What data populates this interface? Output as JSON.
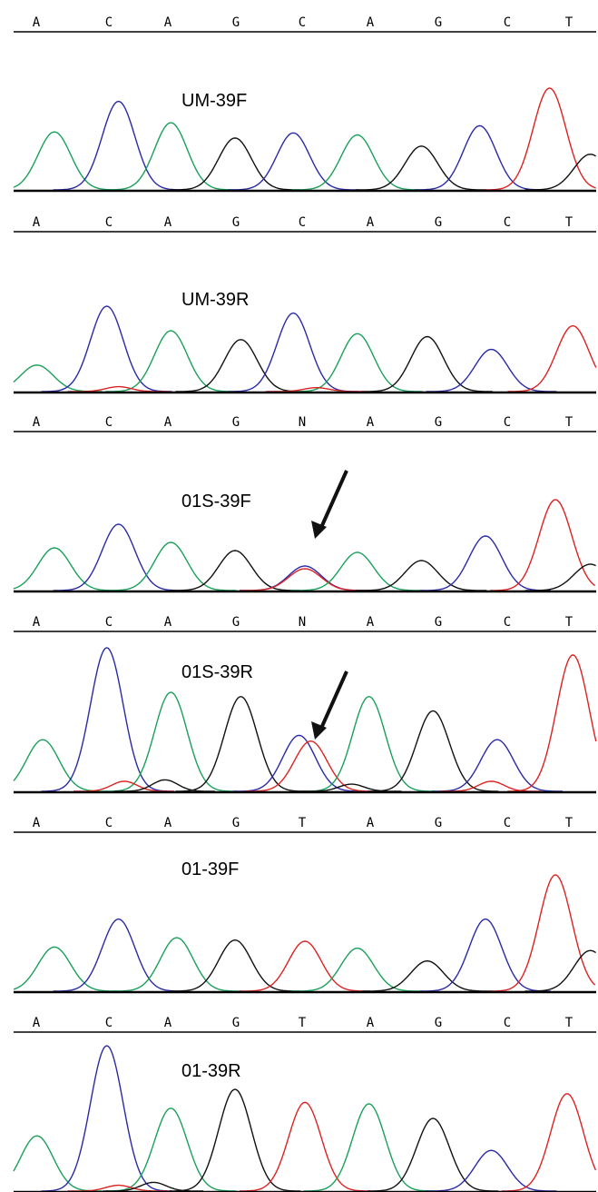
{
  "figure": {
    "panels": [
      {
        "label": "",
        "bases": [
          "A",
          "C",
          "A",
          "G",
          "C",
          "A",
          "G",
          "C",
          "T"
        ],
        "peaks": []
      },
      {
        "label": "UM-39F",
        "bases": [
          "A",
          "C",
          "A",
          "G",
          "C",
          "A",
          "G",
          "C",
          "T"
        ],
        "arrow": false,
        "peaks": [
          {
            "base": "G",
            "pos": 0.07,
            "h": 0.57
          },
          {
            "base": "C",
            "pos": 0.18,
            "h": 0.87
          },
          {
            "base": "G",
            "pos": 0.27,
            "h": 0.66
          },
          {
            "base": "N",
            "pos": 0.38,
            "h": 0.51
          },
          {
            "base": "C",
            "pos": 0.48,
            "h": 0.56
          },
          {
            "base": "G",
            "pos": 0.59,
            "h": 0.54
          },
          {
            "base": "N",
            "pos": 0.7,
            "h": 0.43
          },
          {
            "base": "C",
            "pos": 0.8,
            "h": 0.63
          },
          {
            "base": "T",
            "pos": 0.92,
            "h": 1.0
          },
          {
            "base": "N",
            "pos": 0.99,
            "h": 0.35
          }
        ]
      },
      {
        "label": "UM-39R",
        "bases": [
          "A",
          "C",
          "A",
          "G",
          "N",
          "A",
          "G",
          "C",
          "T"
        ],
        "arrow": false,
        "peaks": [
          {
            "base": "G",
            "pos": 0.04,
            "h": 0.27
          },
          {
            "base": "C",
            "pos": 0.16,
            "h": 0.87
          },
          {
            "base": "G",
            "pos": 0.27,
            "h": 0.62
          },
          {
            "base": "N",
            "pos": 0.39,
            "h": 0.53
          },
          {
            "base": "C",
            "pos": 0.48,
            "h": 0.8
          },
          {
            "base": "G",
            "pos": 0.59,
            "h": 0.59
          },
          {
            "base": "N",
            "pos": 0.71,
            "h": 0.56
          },
          {
            "base": "C",
            "pos": 0.82,
            "h": 0.43
          },
          {
            "base": "T",
            "pos": 0.96,
            "h": 0.67
          },
          {
            "base": "T",
            "pos": 0.18,
            "h": 0.05
          },
          {
            "base": "T",
            "pos": 0.52,
            "h": 0.04
          }
        ]
      },
      {
        "label": "01S-39F",
        "bases": [
          "A",
          "C",
          "A",
          "G",
          "N",
          "A",
          "G",
          "C",
          "T"
        ],
        "arrow": true,
        "peaks": [
          {
            "base": "G",
            "pos": 0.07,
            "h": 0.47
          },
          {
            "base": "C",
            "pos": 0.18,
            "h": 0.73
          },
          {
            "base": "G",
            "pos": 0.27,
            "h": 0.53
          },
          {
            "base": "N",
            "pos": 0.38,
            "h": 0.44
          },
          {
            "base": "C",
            "pos": 0.5,
            "h": 0.27
          },
          {
            "base": "T",
            "pos": 0.5,
            "h": 0.24
          },
          {
            "base": "G",
            "pos": 0.59,
            "h": 0.42
          },
          {
            "base": "N",
            "pos": 0.7,
            "h": 0.33
          },
          {
            "base": "C",
            "pos": 0.81,
            "h": 0.6
          },
          {
            "base": "T",
            "pos": 0.93,
            "h": 1.0
          },
          {
            "base": "N",
            "pos": 0.99,
            "h": 0.29
          }
        ]
      },
      {
        "label": "01S-39R",
        "bases": [
          "A",
          "C",
          "A",
          "G",
          "T",
          "A",
          "G",
          "C",
          "T"
        ],
        "arrow": true,
        "peaks": [
          {
            "base": "G",
            "pos": 0.05,
            "h": 0.36
          },
          {
            "base": "C",
            "pos": 0.16,
            "h": 1.0
          },
          {
            "base": "G",
            "pos": 0.27,
            "h": 0.69
          },
          {
            "base": "N",
            "pos": 0.39,
            "h": 0.66
          },
          {
            "base": "C",
            "pos": 0.49,
            "h": 0.39
          },
          {
            "base": "T",
            "pos": 0.51,
            "h": 0.35
          },
          {
            "base": "G",
            "pos": 0.61,
            "h": 0.66
          },
          {
            "base": "N",
            "pos": 0.72,
            "h": 0.56
          },
          {
            "base": "C",
            "pos": 0.83,
            "h": 0.36
          },
          {
            "base": "T",
            "pos": 0.96,
            "h": 0.95
          },
          {
            "base": "T",
            "pos": 0.19,
            "h": 0.07
          },
          {
            "base": "N",
            "pos": 0.26,
            "h": 0.08
          },
          {
            "base": "N",
            "pos": 0.58,
            "h": 0.05
          },
          {
            "base": "T",
            "pos": 0.82,
            "h": 0.07
          }
        ]
      },
      {
        "label": "01-39F",
        "bases": [
          "A",
          "C",
          "A",
          "G",
          "T",
          "A",
          "G",
          "C",
          "T"
        ],
        "arrow": false,
        "peaks": [
          {
            "base": "G",
            "pos": 0.07,
            "h": 0.38
          },
          {
            "base": "C",
            "pos": 0.18,
            "h": 0.62
          },
          {
            "base": "G",
            "pos": 0.28,
            "h": 0.46
          },
          {
            "base": "N",
            "pos": 0.38,
            "h": 0.44
          },
          {
            "base": "T",
            "pos": 0.5,
            "h": 0.43
          },
          {
            "base": "G",
            "pos": 0.59,
            "h": 0.37
          },
          {
            "base": "N",
            "pos": 0.71,
            "h": 0.26
          },
          {
            "base": "C",
            "pos": 0.81,
            "h": 0.62
          },
          {
            "base": "T",
            "pos": 0.93,
            "h": 1.0
          },
          {
            "base": "N",
            "pos": 0.99,
            "h": 0.35
          }
        ]
      },
      {
        "label": "01-39R",
        "bases": [],
        "arrow": false,
        "peaks": [
          {
            "base": "G",
            "pos": 0.04,
            "h": 0.38
          },
          {
            "base": "C",
            "pos": 0.16,
            "h": 1.0
          },
          {
            "base": "G",
            "pos": 0.27,
            "h": 0.57
          },
          {
            "base": "N",
            "pos": 0.38,
            "h": 0.7
          },
          {
            "base": "T",
            "pos": 0.5,
            "h": 0.61
          },
          {
            "base": "G",
            "pos": 0.61,
            "h": 0.6
          },
          {
            "base": "N",
            "pos": 0.72,
            "h": 0.5
          },
          {
            "base": "C",
            "pos": 0.82,
            "h": 0.28
          },
          {
            "base": "T",
            "pos": 0.95,
            "h": 0.67
          },
          {
            "base": "T",
            "pos": 0.18,
            "h": 0.04
          },
          {
            "base": "N",
            "pos": 0.24,
            "h": 0.06
          }
        ]
      }
    ],
    "colors": {
      "A": "#1aa05a",
      "G": "#1aa05a",
      "C": "#2a2aa8",
      "N": "#111111",
      "T": "#dd2222",
      "axis": "#000000"
    }
  }
}
